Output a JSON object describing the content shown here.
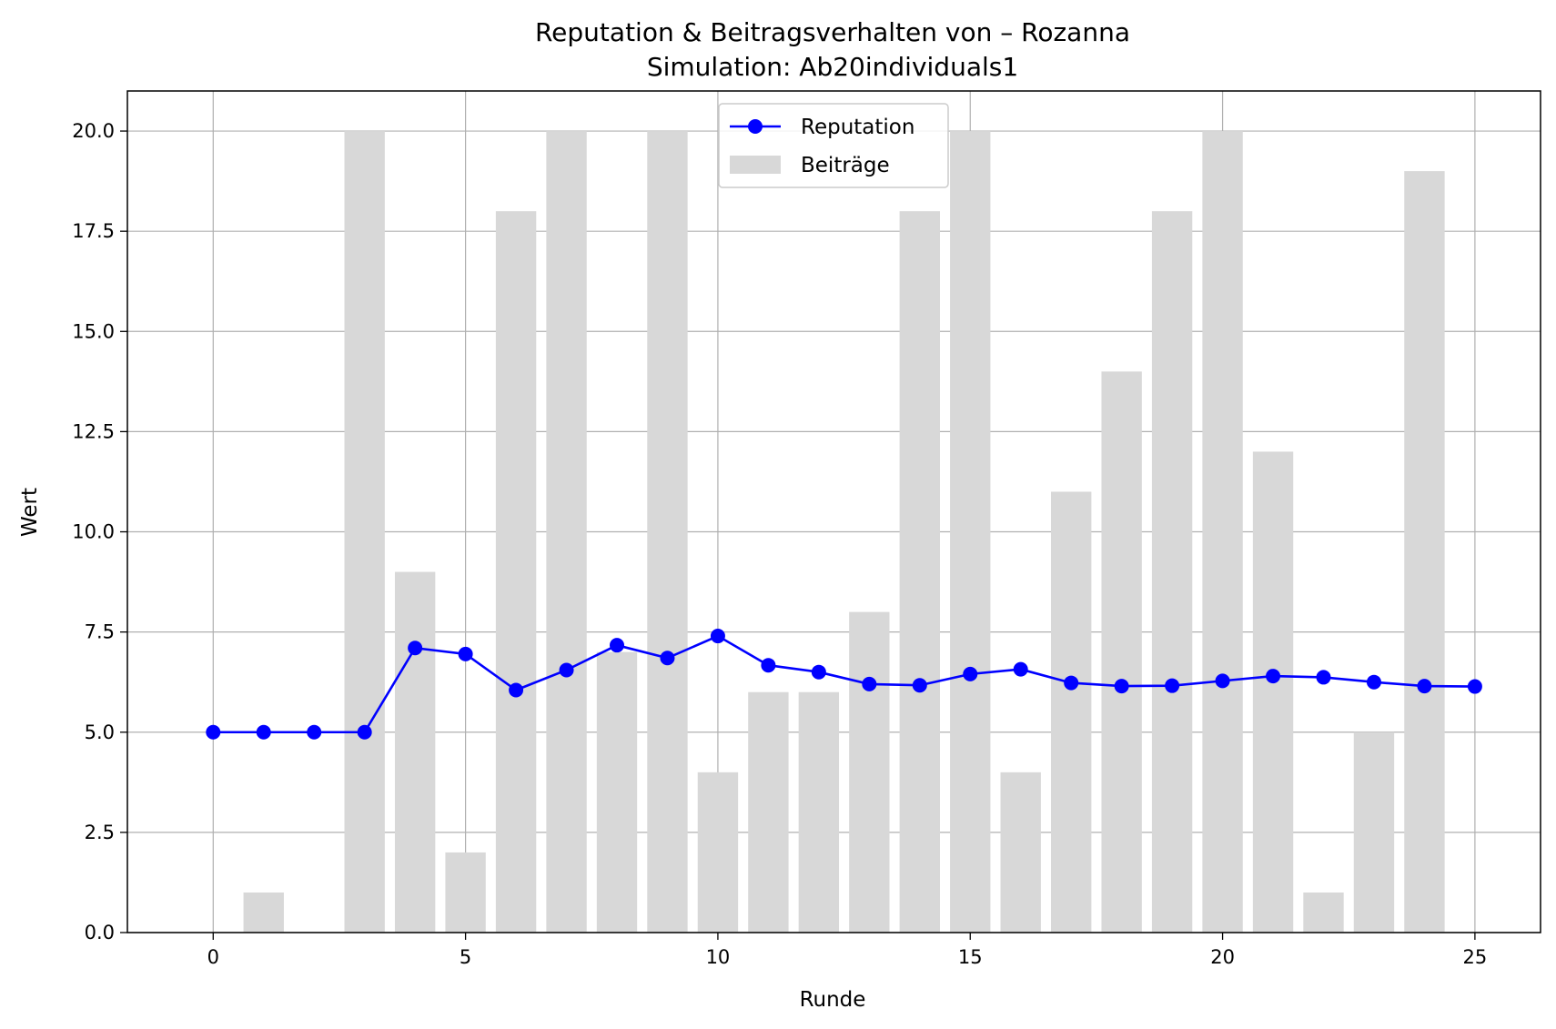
{
  "chart_data": {
    "type": "bar+line",
    "title": "Reputation & Beitragsverhalten von – Rozanna",
    "subtitle": "Simulation: Ab20individuals1",
    "xlabel": "Runde",
    "ylabel": "Wert",
    "xlim": [
      -1.7,
      26.3
    ],
    "ylim": [
      0,
      21
    ],
    "x_ticks": [
      0,
      5,
      10,
      15,
      20,
      25
    ],
    "y_ticks": [
      0,
      2.5,
      5,
      7.5,
      10,
      12.5,
      15,
      17.5,
      20
    ],
    "x_tick_labels": [
      "0",
      "5",
      "10",
      "15",
      "20",
      "25"
    ],
    "y_tick_labels": [
      "0.0",
      "2.5",
      "5.0",
      "7.5",
      "10.0",
      "12.5",
      "15.0",
      "17.5",
      "20.0"
    ],
    "grid": true,
    "legend_position": "top-center",
    "x": [
      0,
      1,
      2,
      3,
      4,
      5,
      6,
      7,
      8,
      9,
      10,
      11,
      12,
      13,
      14,
      15,
      16,
      17,
      18,
      19,
      20,
      21,
      22,
      23,
      24,
      25
    ],
    "series": [
      {
        "name": "Reputation",
        "kind": "line",
        "color": "#0000ff",
        "marker": "circle",
        "values": [
          5.0,
          5.0,
          5.0,
          5.0,
          7.1,
          6.95,
          6.05,
          6.55,
          7.17,
          6.85,
          7.4,
          6.67,
          6.5,
          6.2,
          6.17,
          6.45,
          6.57,
          6.23,
          6.15,
          6.16,
          6.28,
          6.4,
          6.37,
          6.25,
          6.15,
          6.14
        ]
      },
      {
        "name": "Beiträge",
        "kind": "bar",
        "color": "#d8d8d8",
        "values": [
          0,
          1,
          0,
          20,
          9,
          2,
          18,
          20,
          7,
          20,
          4,
          6,
          6,
          8,
          18,
          20,
          4,
          11,
          14,
          18,
          20,
          12,
          1,
          5,
          19,
          0
        ]
      }
    ]
  }
}
